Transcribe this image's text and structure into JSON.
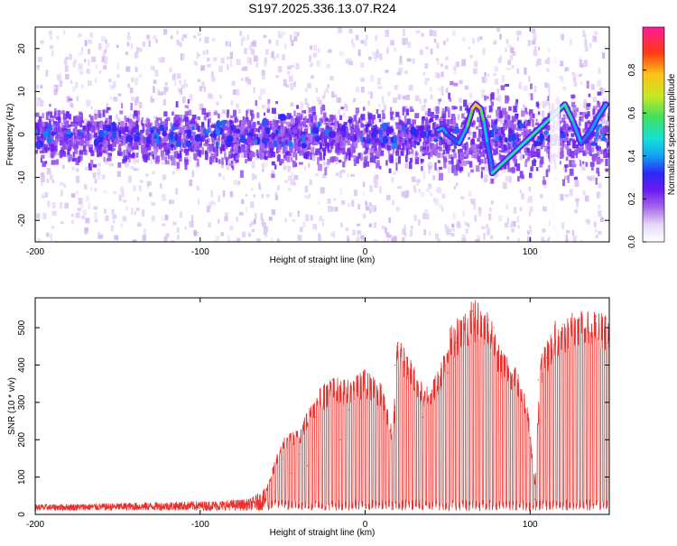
{
  "page_title": "S197.2025.336.13.07.R24",
  "colors": {
    "snr_line": "#e8302c",
    "axis": "#000000",
    "colormap": [
      "#ffffff",
      "#d9c2f2",
      "#a868ea",
      "#6a1bf0",
      "#2a2af5",
      "#14a0f5",
      "#16e0d8",
      "#40e060",
      "#c8e822",
      "#ffc21a",
      "#ff3a14",
      "#ff1a9a"
    ]
  },
  "chart_data": [
    {
      "id": "spectrogram",
      "type": "heatmap",
      "xlabel": "Height of straight line (km)",
      "ylabel": "Frequency (Hz)",
      "xlim": [
        -200,
        148
      ],
      "ylim": [
        -25,
        25
      ],
      "xticks": [
        -200,
        -100,
        0,
        100
      ],
      "yticks": [
        -20,
        -10,
        0,
        10,
        20
      ],
      "colorbar": {
        "label": "Normalized spectral amplitude",
        "range": [
          0,
          1
        ],
        "ticks": [
          0.0,
          0.2,
          0.4,
          0.6,
          0.8
        ]
      },
      "ridge": [
        {
          "x": 44,
          "y": 1,
          "v": 0.45
        },
        {
          "x": 47,
          "y": 1.5,
          "v": 0.5
        },
        {
          "x": 50,
          "y": 0,
          "v": 0.4
        },
        {
          "x": 57,
          "y": -2,
          "v": 0.4
        },
        {
          "x": 62,
          "y": 2,
          "v": 0.55
        },
        {
          "x": 65,
          "y": 6,
          "v": 0.75
        },
        {
          "x": 67,
          "y": 7,
          "v": 0.85
        },
        {
          "x": 70,
          "y": 6,
          "v": 0.75
        },
        {
          "x": 72,
          "y": 3,
          "v": 0.55
        },
        {
          "x": 74,
          "y": -2,
          "v": 0.45
        },
        {
          "x": 76,
          "y": -6,
          "v": 0.4
        },
        {
          "x": 77,
          "y": -9,
          "v": 0.45
        },
        {
          "x": 121,
          "y": 7,
          "v": 0.7
        },
        {
          "x": 126,
          "y": 3,
          "v": 0.5
        },
        {
          "x": 131,
          "y": -2,
          "v": 0.45
        },
        {
          "x": 137,
          "y": 1,
          "v": 0.4
        },
        {
          "x": 141,
          "y": 4,
          "v": 0.5
        },
        {
          "x": 146,
          "y": 7,
          "v": 0.45
        }
      ],
      "hotspots": [
        {
          "x": -143,
          "y": -1,
          "v": 0.35
        },
        {
          "x": -82,
          "y": -1,
          "v": 0.35
        },
        {
          "x": -50,
          "y": 4,
          "v": 0.35
        },
        {
          "x": -30,
          "y": 1,
          "v": 0.35
        },
        {
          "x": -20,
          "y": 0,
          "v": 0.3
        },
        {
          "x": 15,
          "y": 1,
          "v": 0.3
        },
        {
          "x": 35,
          "y": 0,
          "v": 0.3
        }
      ]
    },
    {
      "id": "snr",
      "type": "line",
      "xlabel": "Height of straight line (km)",
      "ylabel": "SNR (10 * v/v)",
      "xlim": [
        -200,
        148
      ],
      "ylim": [
        0,
        580
      ],
      "xticks": [
        -200,
        -100,
        0,
        100
      ],
      "yticks": [
        0,
        100,
        200,
        300,
        400,
        500
      ],
      "series": [
        {
          "name": "SNR",
          "x": [
            -200,
            -175,
            -150,
            -125,
            -100,
            -75,
            -60,
            -55,
            -50,
            -45,
            -40,
            -35,
            -30,
            -25,
            -20,
            -15,
            -10,
            -5,
            0,
            5,
            10,
            15,
            18,
            20,
            25,
            30,
            35,
            40,
            45,
            50,
            55,
            60,
            65,
            70,
            75,
            78,
            80,
            85,
            90,
            95,
            100,
            103,
            105,
            110,
            115,
            120,
            125,
            130,
            135,
            140,
            146
          ],
          "values": [
            25,
            22,
            20,
            25,
            30,
            30,
            40,
            60,
            150,
            110,
            160,
            130,
            260,
            300,
            360,
            200,
            280,
            320,
            380,
            330,
            290,
            110,
            400,
            460,
            420,
            380,
            260,
            300,
            340,
            380,
            460,
            510,
            545,
            525,
            520,
            500,
            430,
            400,
            360,
            290,
            205,
            40,
            360,
            420,
            490,
            510,
            515,
            520,
            520,
            530,
            525
          ],
          "envelope": [
            {
              "x": -200,
              "max": 25
            },
            {
              "x": -160,
              "max": 28
            },
            {
              "x": -120,
              "max": 32
            },
            {
              "x": -90,
              "max": 35
            },
            {
              "x": -70,
              "max": 40
            },
            {
              "x": -60,
              "max": 70
            },
            {
              "x": -50,
              "max": 210
            },
            {
              "x": -40,
              "max": 230
            },
            {
              "x": -30,
              "max": 330
            },
            {
              "x": -20,
              "max": 370
            },
            {
              "x": -10,
              "max": 360
            },
            {
              "x": 0,
              "max": 390
            },
            {
              "x": 10,
              "max": 350
            },
            {
              "x": 17,
              "max": 220
            },
            {
              "x": 19,
              "max": 480
            },
            {
              "x": 28,
              "max": 420
            },
            {
              "x": 36,
              "max": 340
            },
            {
              "x": 45,
              "max": 400
            },
            {
              "x": 52,
              "max": 510
            },
            {
              "x": 60,
              "max": 550
            },
            {
              "x": 65,
              "max": 578
            },
            {
              "x": 75,
              "max": 555
            },
            {
              "x": 80,
              "max": 470
            },
            {
              "x": 90,
              "max": 410
            },
            {
              "x": 98,
              "max": 320
            },
            {
              "x": 103,
              "max": 80
            },
            {
              "x": 106,
              "max": 420
            },
            {
              "x": 115,
              "max": 520
            },
            {
              "x": 125,
              "max": 545
            },
            {
              "x": 135,
              "max": 545
            },
            {
              "x": 146,
              "max": 545
            }
          ]
        }
      ]
    }
  ]
}
